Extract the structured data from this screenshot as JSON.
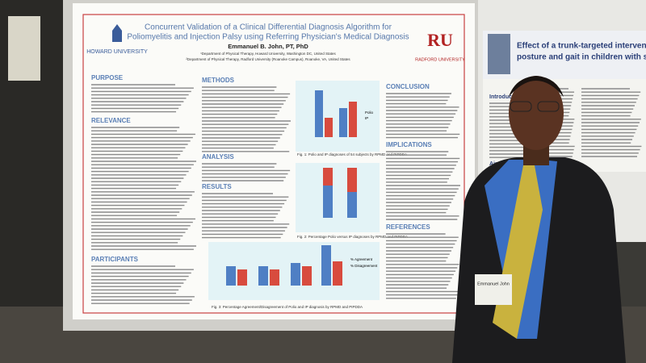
{
  "poster": {
    "logo_left": "HOWARD UNIVERSITY",
    "logo_right_mark": "RU",
    "logo_right": "RADFORD UNIVERSITY",
    "title_lines": [
      "Concurrent Validation of a Clinical Differential Diagnosis Algorithm for",
      "Poliomyelitis and Injection Palsy using Referring Physician's Medical Diagnosis"
    ],
    "author": "Emmanuel B. John, PT, PhD",
    "affiliations": [
      "¹Department of Physical Therapy, Howard University, Washington DC, United States",
      "²Department of Physical Therapy, Radford University (Roanoke Campus), Roanoke, VA, United States"
    ],
    "sections": [
      "PURPOSE",
      "RELEVANCE",
      "PARTICIPANTS",
      "METHODS",
      "ANALYSIS",
      "RESULTS",
      "CONCLUSION",
      "IMPLICATIONS",
      "REFERENCES"
    ],
    "legend_fig1": [
      "Polio",
      "IP"
    ],
    "legend_fig3": [
      "% Agreement",
      "% Disagreement"
    ],
    "captions": [
      "Fig. 1: Polio and IP diagnoses of 54 subjects by RPMD and PIPDDA",
      "Fig. 2: Percentage Polio versus IP diagnoses by RPMD and PIPDDA",
      "Fig. 3: Percentage Agreement/Disagreement of Polio and IP diagnosis by RPMD and PIPDDA"
    ]
  },
  "second_poster": {
    "title_lines": [
      "Effect of a trunk-targeted intervention using",
      "posture and gait in children with spastic"
    ],
    "sections": [
      "Introduction",
      "Aims"
    ]
  },
  "badge": "Emmanuel John"
}
